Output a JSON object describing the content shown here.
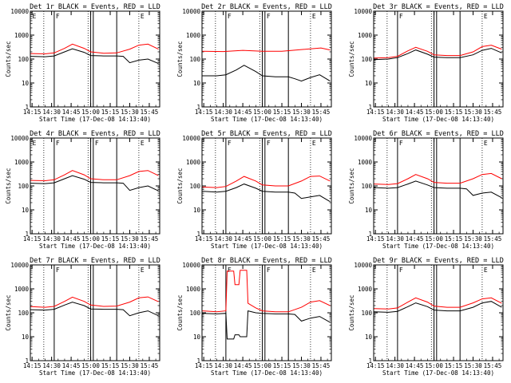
{
  "colors": {
    "events": "#000000",
    "lld": "#ff0000",
    "axes": "#000000",
    "background": "#ffffff"
  },
  "common": {
    "xlabel": "Start Time (17-Dec-08 14:13:40)",
    "ylabel": "Counts/sec",
    "x_ticks": [
      "14:15",
      "14:30",
      "14:45",
      "15:00",
      "15:15",
      "15:30",
      "15:45"
    ],
    "y_ticks": [
      "1",
      "10",
      "100",
      "1000",
      "10000"
    ]
  },
  "chart_data": [
    {
      "type": "line",
      "title": "Det 1r BLACK = Events, RED = LLD",
      "xlim": [
        "14:13:40",
        "15:53:00"
      ],
      "ylim": [
        1,
        10000
      ],
      "yscale": "log",
      "xlabel": "Start Time (17-Dec-08 14:13:40)",
      "ylabel": "Counts/sec",
      "solid_lines": [
        "14:32",
        "15:00",
        "15:02",
        "15:20"
      ],
      "dotted_lines": [
        "14:24",
        "14:58",
        "15:37"
      ],
      "markers": [
        {
          "x": "14:32",
          "label": "F"
        },
        {
          "x": "15:37",
          "label": "E"
        },
        {
          "x": "14:14",
          "label": "E"
        }
      ],
      "series": [
        {
          "name": "LLD",
          "x": [
            "14:14",
            "14:25",
            "14:32",
            "14:40",
            "14:46",
            "14:55",
            "15:00",
            "15:10",
            "15:20",
            "15:30",
            "15:37",
            "15:44",
            "15:52"
          ],
          "y": [
            170,
            165,
            180,
            280,
            420,
            280,
            200,
            175,
            180,
            260,
            380,
            420,
            260
          ]
        },
        {
          "name": "Events",
          "x": [
            "14:14",
            "14:25",
            "14:32",
            "14:40",
            "14:46",
            "14:55",
            "15:00",
            "15:10",
            "15:20",
            "15:25",
            "15:30",
            "15:37",
            "15:44",
            "15:52"
          ],
          "y": [
            130,
            125,
            135,
            200,
            270,
            190,
            140,
            135,
            135,
            130,
            70,
            90,
            100,
            65
          ]
        }
      ]
    },
    {
      "type": "line",
      "title": "Det 2r BLACK = Events, RED = LLD",
      "xlim": [
        "14:13:40",
        "15:53:00"
      ],
      "ylim": [
        1,
        10000
      ],
      "yscale": "log",
      "xlabel": "Start Time (17-Dec-08 14:13:40)",
      "ylabel": "Counts/sec",
      "solid_lines": [
        "14:32",
        "15:00",
        "15:02",
        "15:20"
      ],
      "dotted_lines": [
        "14:24",
        "14:58",
        "15:37"
      ],
      "markers": [
        {
          "x": "14:32",
          "label": "F"
        },
        {
          "x": "15:02",
          "label": "F"
        },
        {
          "x": "15:37",
          "label": "E"
        }
      ],
      "series": [
        {
          "name": "LLD",
          "x": [
            "14:14",
            "14:30",
            "14:45",
            "15:00",
            "15:15",
            "15:30",
            "15:45",
            "15:52"
          ],
          "y": [
            210,
            205,
            230,
            210,
            210,
            250,
            290,
            240
          ]
        },
        {
          "name": "Events",
          "x": [
            "14:14",
            "14:25",
            "14:32",
            "14:40",
            "14:46",
            "14:55",
            "15:00",
            "15:10",
            "15:20",
            "15:25",
            "15:30",
            "15:37",
            "15:44",
            "15:52"
          ],
          "y": [
            20,
            20,
            22,
            35,
            55,
            30,
            20,
            18,
            18,
            15,
            12,
            17,
            22,
            12
          ]
        }
      ]
    },
    {
      "type": "line",
      "title": "Det 3r BLACK = Events, RED = LLD",
      "xlim": [
        "14:13:40",
        "15:53:00"
      ],
      "ylim": [
        1,
        10000
      ],
      "yscale": "log",
      "xlabel": "Start Time (17-Dec-08 14:13:40)",
      "ylabel": "Counts/sec",
      "solid_lines": [
        "14:32",
        "15:00",
        "15:02",
        "15:20"
      ],
      "dotted_lines": [
        "14:24",
        "14:58",
        "15:37"
      ],
      "markers": [
        {
          "x": "14:32",
          "label": "F"
        },
        {
          "x": "15:37",
          "label": "E"
        }
      ],
      "series": [
        {
          "name": "LLD",
          "x": [
            "14:14",
            "14:25",
            "14:32",
            "14:40",
            "14:46",
            "14:55",
            "15:00",
            "15:10",
            "15:20",
            "15:30",
            "15:37",
            "15:44",
            "15:52"
          ],
          "y": [
            110,
            115,
            130,
            220,
            310,
            210,
            150,
            140,
            140,
            200,
            330,
            380,
            260
          ]
        },
        {
          "name": "Events",
          "x": [
            "14:14",
            "14:25",
            "14:32",
            "14:40",
            "14:46",
            "14:55",
            "15:00",
            "15:10",
            "15:20",
            "15:30",
            "15:37",
            "15:44",
            "15:52"
          ],
          "y": [
            95,
            100,
            115,
            170,
            240,
            160,
            120,
            115,
            115,
            150,
            230,
            280,
            180
          ]
        }
      ]
    },
    {
      "type": "line",
      "title": "Det 4r BLACK = Events, RED = LLD",
      "xlim": [
        "14:13:40",
        "15:53:00"
      ],
      "ylim": [
        1,
        10000
      ],
      "yscale": "log",
      "xlabel": "Start Time (17-Dec-08 14:13:40)",
      "ylabel": "Counts/sec",
      "solid_lines": [
        "14:32",
        "15:00",
        "15:02",
        "15:20"
      ],
      "dotted_lines": [
        "14:24",
        "14:58",
        "15:37"
      ],
      "markers": [
        {
          "x": "14:32",
          "label": "F"
        },
        {
          "x": "15:02",
          "label": "F"
        },
        {
          "x": "15:37",
          "label": "E"
        },
        {
          "x": "14:14",
          "label": "E"
        }
      ],
      "series": [
        {
          "name": "LLD",
          "x": [
            "14:14",
            "14:25",
            "14:32",
            "14:40",
            "14:46",
            "14:55",
            "15:00",
            "15:10",
            "15:20",
            "15:30",
            "15:37",
            "15:44",
            "15:52"
          ],
          "y": [
            170,
            165,
            180,
            290,
            440,
            290,
            200,
            180,
            180,
            270,
            400,
            440,
            270
          ]
        },
        {
          "name": "Events",
          "x": [
            "14:14",
            "14:25",
            "14:32",
            "14:40",
            "14:46",
            "14:55",
            "15:00",
            "15:10",
            "15:20",
            "15:25",
            "15:30",
            "15:37",
            "15:44",
            "15:52"
          ],
          "y": [
            130,
            125,
            135,
            200,
            270,
            190,
            140,
            135,
            135,
            130,
            65,
            85,
            100,
            62
          ]
        }
      ]
    },
    {
      "type": "line",
      "title": "Det 5r BLACK = Events, RED = LLD",
      "xlim": [
        "14:13:40",
        "15:53:00"
      ],
      "ylim": [
        1,
        10000
      ],
      "yscale": "log",
      "xlabel": "Start Time (17-Dec-08 14:13:40)",
      "ylabel": "Counts/sec",
      "solid_lines": [
        "14:32",
        "15:00",
        "15:02",
        "15:20"
      ],
      "dotted_lines": [
        "14:24",
        "14:58",
        "15:37"
      ],
      "markers": [
        {
          "x": "14:32",
          "label": "F"
        },
        {
          "x": "15:02",
          "label": "F"
        },
        {
          "x": "15:37",
          "label": "E"
        }
      ],
      "series": [
        {
          "name": "LLD",
          "x": [
            "14:14",
            "14:25",
            "14:32",
            "14:40",
            "14:46",
            "14:55",
            "15:00",
            "15:10",
            "15:20",
            "15:30",
            "15:37",
            "15:44",
            "15:52"
          ],
          "y": [
            90,
            85,
            95,
            160,
            250,
            160,
            110,
            100,
            100,
            160,
            250,
            260,
            160
          ]
        },
        {
          "name": "Events",
          "x": [
            "14:14",
            "14:25",
            "14:32",
            "14:40",
            "14:46",
            "14:55",
            "15:00",
            "15:10",
            "15:20",
            "15:25",
            "15:30",
            "15:37",
            "15:44",
            "15:52"
          ],
          "y": [
            60,
            55,
            60,
            85,
            120,
            80,
            60,
            55,
            55,
            50,
            30,
            35,
            40,
            22
          ]
        }
      ]
    },
    {
      "type": "line",
      "title": "Det 6r BLACK = Events, RED = LLD",
      "xlim": [
        "14:13:40",
        "15:53:00"
      ],
      "ylim": [
        1,
        10000
      ],
      "yscale": "log",
      "xlabel": "Start Time (17-Dec-08 14:13:40)",
      "ylabel": "Counts/sec",
      "solid_lines": [
        "14:32",
        "15:00",
        "15:02",
        "15:20"
      ],
      "dotted_lines": [
        "14:24",
        "14:58",
        "15:37"
      ],
      "markers": [
        {
          "x": "14:32",
          "label": "F"
        },
        {
          "x": "15:37",
          "label": "E"
        }
      ],
      "series": [
        {
          "name": "LLD",
          "x": [
            "14:14",
            "14:25",
            "14:32",
            "14:40",
            "14:46",
            "14:55",
            "15:00",
            "15:10",
            "15:20",
            "15:30",
            "15:37",
            "15:44",
            "15:52"
          ],
          "y": [
            120,
            115,
            125,
            200,
            300,
            200,
            140,
            130,
            130,
            200,
            300,
            330,
            200
          ]
        },
        {
          "name": "Events",
          "x": [
            "14:14",
            "14:25",
            "14:32",
            "14:40",
            "14:46",
            "14:55",
            "15:00",
            "15:10",
            "15:20",
            "15:25",
            "15:30",
            "15:37",
            "15:44",
            "15:52"
          ],
          "y": [
            85,
            80,
            85,
            120,
            160,
            110,
            85,
            80,
            80,
            75,
            40,
            50,
            55,
            32
          ]
        }
      ]
    },
    {
      "type": "line",
      "title": "Det 7r BLACK = Events, RED = LLD",
      "xlim": [
        "14:13:40",
        "15:53:00"
      ],
      "ylim": [
        1,
        10000
      ],
      "yscale": "log",
      "xlabel": "Start Time (17-Dec-08 14:13:40)",
      "ylabel": "Counts/sec",
      "solid_lines": [
        "14:32",
        "15:00",
        "15:02",
        "15:20"
      ],
      "dotted_lines": [
        "14:24",
        "14:58",
        "15:37"
      ],
      "markers": [
        {
          "x": "14:32",
          "label": "F"
        },
        {
          "x": "15:37",
          "label": "E"
        }
      ],
      "series": [
        {
          "name": "LLD",
          "x": [
            "14:14",
            "14:25",
            "14:32",
            "14:40",
            "14:46",
            "14:55",
            "15:00",
            "15:10",
            "15:20",
            "15:30",
            "15:37",
            "15:44",
            "15:52"
          ],
          "y": [
            180,
            170,
            185,
            300,
            450,
            300,
            210,
            185,
            190,
            280,
            420,
            460,
            290
          ]
        },
        {
          "name": "Events",
          "x": [
            "14:14",
            "14:25",
            "14:32",
            "14:40",
            "14:46",
            "14:55",
            "15:00",
            "15:10",
            "15:20",
            "15:25",
            "15:30",
            "15:37",
            "15:44",
            "15:52"
          ],
          "y": [
            135,
            130,
            140,
            210,
            280,
            200,
            145,
            140,
            140,
            135,
            75,
            100,
            120,
            75
          ]
        }
      ]
    },
    {
      "type": "line",
      "title": "Det 8r BLACK = Events, RED = LLD",
      "xlim": [
        "14:13:40",
        "15:53:00"
      ],
      "ylim": [
        1,
        10000
      ],
      "yscale": "log",
      "xlabel": "Start Time (17-Dec-08 14:13:40)",
      "ylabel": "Counts/sec",
      "solid_lines": [
        "14:32",
        "15:00",
        "15:02",
        "15:20"
      ],
      "dotted_lines": [
        "14:24",
        "14:58",
        "15:37"
      ],
      "markers": [
        {
          "x": "14:32",
          "label": "F"
        },
        {
          "x": "15:02",
          "label": "F"
        },
        {
          "x": "15:37",
          "label": "E"
        }
      ],
      "series": [
        {
          "name": "LLD",
          "x": [
            "14:14",
            "14:25",
            "14:32",
            "14:33",
            "14:38",
            "14:39",
            "14:42",
            "14:43",
            "14:48",
            "14:49",
            "14:55",
            "15:00",
            "15:10",
            "15:20",
            "15:30",
            "15:37",
            "15:44",
            "15:52"
          ],
          "y": [
            120,
            110,
            120,
            5500,
            5500,
            1500,
            1500,
            6000,
            6000,
            250,
            160,
            120,
            110,
            110,
            170,
            280,
            320,
            200
          ]
        },
        {
          "name": "Events",
          "x": [
            "14:14",
            "14:25",
            "14:32",
            "14:33",
            "14:38",
            "14:39",
            "14:42",
            "14:43",
            "14:48",
            "14:49",
            "14:55",
            "15:00",
            "15:10",
            "15:20",
            "15:25",
            "15:30",
            "15:37",
            "15:44",
            "15:52"
          ],
          "y": [
            95,
            90,
            95,
            8,
            8,
            12,
            12,
            10,
            10,
            120,
            100,
            95,
            90,
            90,
            85,
            45,
            60,
            70,
            40
          ]
        }
      ]
    },
    {
      "type": "line",
      "title": "Det 9r BLACK = Events, RED = LLD",
      "xlim": [
        "14:13:40",
        "15:53:00"
      ],
      "ylim": [
        1,
        10000
      ],
      "yscale": "log",
      "xlabel": "Start Time (17-Dec-08 14:13:40)",
      "ylabel": "Counts/sec",
      "solid_lines": [
        "14:32",
        "15:00",
        "15:02",
        "15:20"
      ],
      "dotted_lines": [
        "14:24",
        "14:58",
        "15:37"
      ],
      "markers": [
        {
          "x": "14:32",
          "label": "F"
        },
        {
          "x": "15:37",
          "label": "E"
        }
      ],
      "series": [
        {
          "name": "LLD",
          "x": [
            "14:14",
            "14:25",
            "14:32",
            "14:40",
            "14:46",
            "14:55",
            "15:00",
            "15:10",
            "15:20",
            "15:30",
            "15:37",
            "15:44",
            "15:52"
          ],
          "y": [
            150,
            145,
            160,
            280,
            420,
            280,
            190,
            170,
            170,
            260,
            380,
            420,
            250
          ]
        },
        {
          "name": "Events",
          "x": [
            "14:14",
            "14:25",
            "14:32",
            "14:40",
            "14:46",
            "14:55",
            "15:00",
            "15:10",
            "15:20",
            "15:30",
            "15:37",
            "15:44",
            "15:52"
          ],
          "y": [
            110,
            105,
            115,
            180,
            260,
            180,
            130,
            120,
            120,
            170,
            260,
            300,
            170
          ]
        }
      ]
    }
  ]
}
